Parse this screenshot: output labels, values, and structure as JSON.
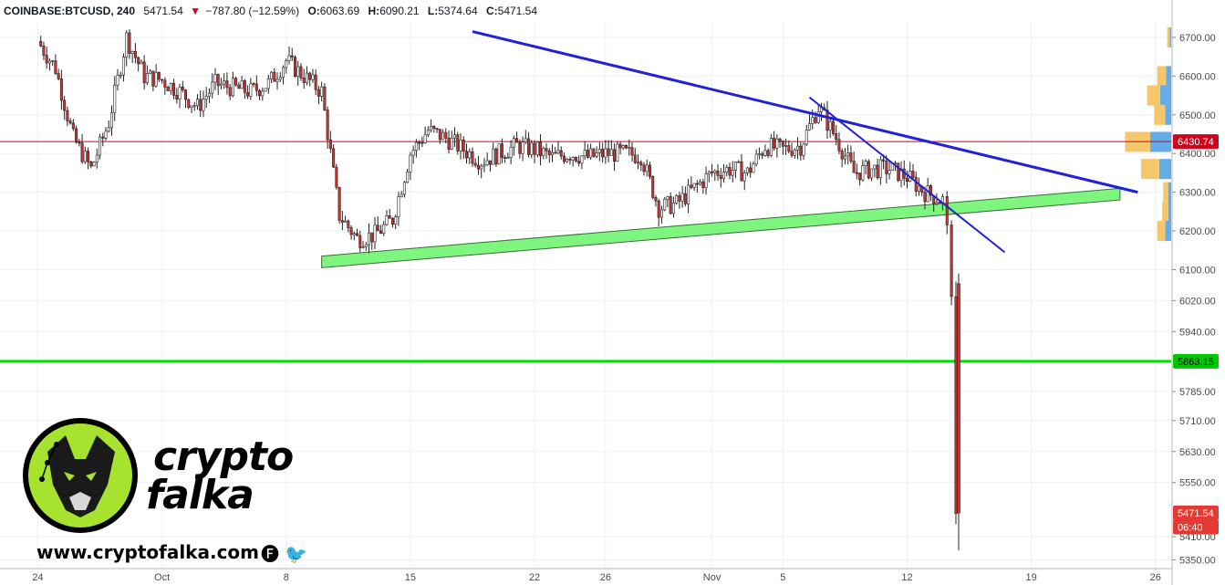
{
  "header": {
    "symbol": "COINBASE:BTCUSD, 240",
    "last": "5471.54",
    "change": "−787.80 (−12.59%)",
    "open_label": "O:",
    "open": "6063.69",
    "high_label": "H:",
    "high": "6090.21",
    "low_label": "L:",
    "low": "5374.64",
    "close_label": "C:",
    "close": "5471.54",
    "down_color": "#d0021b"
  },
  "brand": {
    "word_top": "crypto",
    "word_bottom": "falka",
    "website": "www.cryptofalka.com",
    "social": "🅕 🐦",
    "accent": "#a6e22e"
  },
  "chart_data": {
    "type": "candlestick",
    "ylim": [
      5330,
      6740
    ],
    "price_ticks": [
      6700,
      6600,
      6500,
      6400,
      6300,
      6200,
      6100,
      6020,
      5940,
      5785,
      5710,
      5630,
      5550,
      5410,
      5350
    ],
    "x_ticks": [
      "24",
      "Oct",
      "8",
      "15",
      "22",
      "26",
      "Nov",
      "5",
      "12",
      "19",
      "26"
    ],
    "price_tags": [
      {
        "label": "6430.74",
        "value": 6430.74,
        "color": "#d0021b"
      },
      {
        "label": "5863.15",
        "value": 5863.15,
        "color": "#00c800"
      },
      {
        "label": "5471.54",
        "value": 5471.54,
        "color": "#e53935"
      },
      {
        "label": "06:40",
        "value": 5435,
        "color": "#e53935"
      }
    ],
    "horizontal_lines": [
      {
        "value": 6430.74,
        "color": "#d0021b"
      },
      {
        "value": 5863.15,
        "color": "#00e000"
      }
    ],
    "trendlines": [
      {
        "from": [
          "Oct 18 12:00",
          6715
        ],
        "to": [
          "Nov 25 00:00",
          6300
        ],
        "color": "#1f22d6"
      },
      {
        "from": [
          "Nov 06 12:00",
          6545
        ],
        "to": [
          "Nov 17 12:00",
          6145
        ],
        "color": "#1f22d6"
      }
    ],
    "support_channel": {
      "from": [
        "Oct 10 00:00",
        6135
      ],
      "to": [
        "Nov 24 00:00",
        6310
      ],
      "height": 30,
      "color": "#7ef57e"
    },
    "volume_profile": [
      {
        "price": 6700,
        "buy": 5,
        "sell": 3
      },
      {
        "price": 6600,
        "buy": 18,
        "sell": 10
      },
      {
        "price": 6550,
        "buy": 26,
        "sell": 22
      },
      {
        "price": 6500,
        "buy": 22,
        "sell": 12
      },
      {
        "price": 6430,
        "buy": 50,
        "sell": 42
      },
      {
        "price": 6360,
        "buy": 36,
        "sell": 24
      },
      {
        "price": 6300,
        "buy": 10,
        "sell": 6
      },
      {
        "price": 6250,
        "buy": 12,
        "sell": 6
      },
      {
        "price": 6200,
        "buy": 16,
        "sell": 12
      }
    ],
    "price_path": [
      [
        "Sep 24",
        6690
      ],
      [
        "Sep 25",
        6620
      ],
      [
        "Sep 26",
        6440
      ],
      [
        "Sep 27",
        6360
      ],
      [
        "Sep 28",
        6480
      ],
      [
        "Sep 29",
        6700
      ],
      [
        "Sep 30",
        6600
      ],
      [
        "Oct 01",
        6590
      ],
      [
        "Oct 02",
        6560
      ],
      [
        "Oct 03",
        6520
      ],
      [
        "Oct 04",
        6580
      ],
      [
        "Oct 05",
        6570
      ],
      [
        "Oct 06",
        6560
      ],
      [
        "Oct 07",
        6580
      ],
      [
        "Oct 08",
        6640
      ],
      [
        "Oct 09",
        6600
      ],
      [
        "Oct 10",
        6560
      ],
      [
        "Oct 11",
        6240
      ],
      [
        "Oct 12",
        6180
      ],
      [
        "Oct 13",
        6190
      ],
      [
        "Oct 14",
        6230
      ],
      [
        "Oct 15",
        6400
      ],
      [
        "Oct 16",
        6460
      ],
      [
        "Oct 17",
        6440
      ],
      [
        "Oct 18",
        6410
      ],
      [
        "Oct 19",
        6380
      ],
      [
        "Oct 20",
        6400
      ],
      [
        "Oct 21",
        6420
      ],
      [
        "Oct 22",
        6410
      ],
      [
        "Oct 23",
        6390
      ],
      [
        "Oct 24",
        6400
      ],
      [
        "Oct 25",
        6390
      ],
      [
        "Oct 26",
        6400
      ],
      [
        "Oct 27",
        6400
      ],
      [
        "Oct 28",
        6395
      ],
      [
        "Oct 29",
        6260
      ],
      [
        "Oct 30",
        6270
      ],
      [
        "Oct 31",
        6310
      ],
      [
        "Nov 01",
        6350
      ],
      [
        "Nov 02",
        6360
      ],
      [
        "Nov 03",
        6350
      ],
      [
        "Nov 04",
        6420
      ],
      [
        "Nov 05",
        6410
      ],
      [
        "Nov 06",
        6420
      ],
      [
        "Nov 07",
        6520
      ],
      [
        "Nov 08",
        6440
      ],
      [
        "Nov 09",
        6350
      ],
      [
        "Nov 10",
        6360
      ],
      [
        "Nov 11",
        6360
      ],
      [
        "Nov 12",
        6340
      ],
      [
        "Nov 13",
        6300
      ],
      [
        "Nov 14",
        6280
      ],
      [
        "Nov 14 06:00",
        6200
      ],
      [
        "Nov 14 12:00",
        6050
      ],
      [
        "Nov 14 18:00",
        5470
      ]
    ],
    "current_price": 5471.54
  }
}
